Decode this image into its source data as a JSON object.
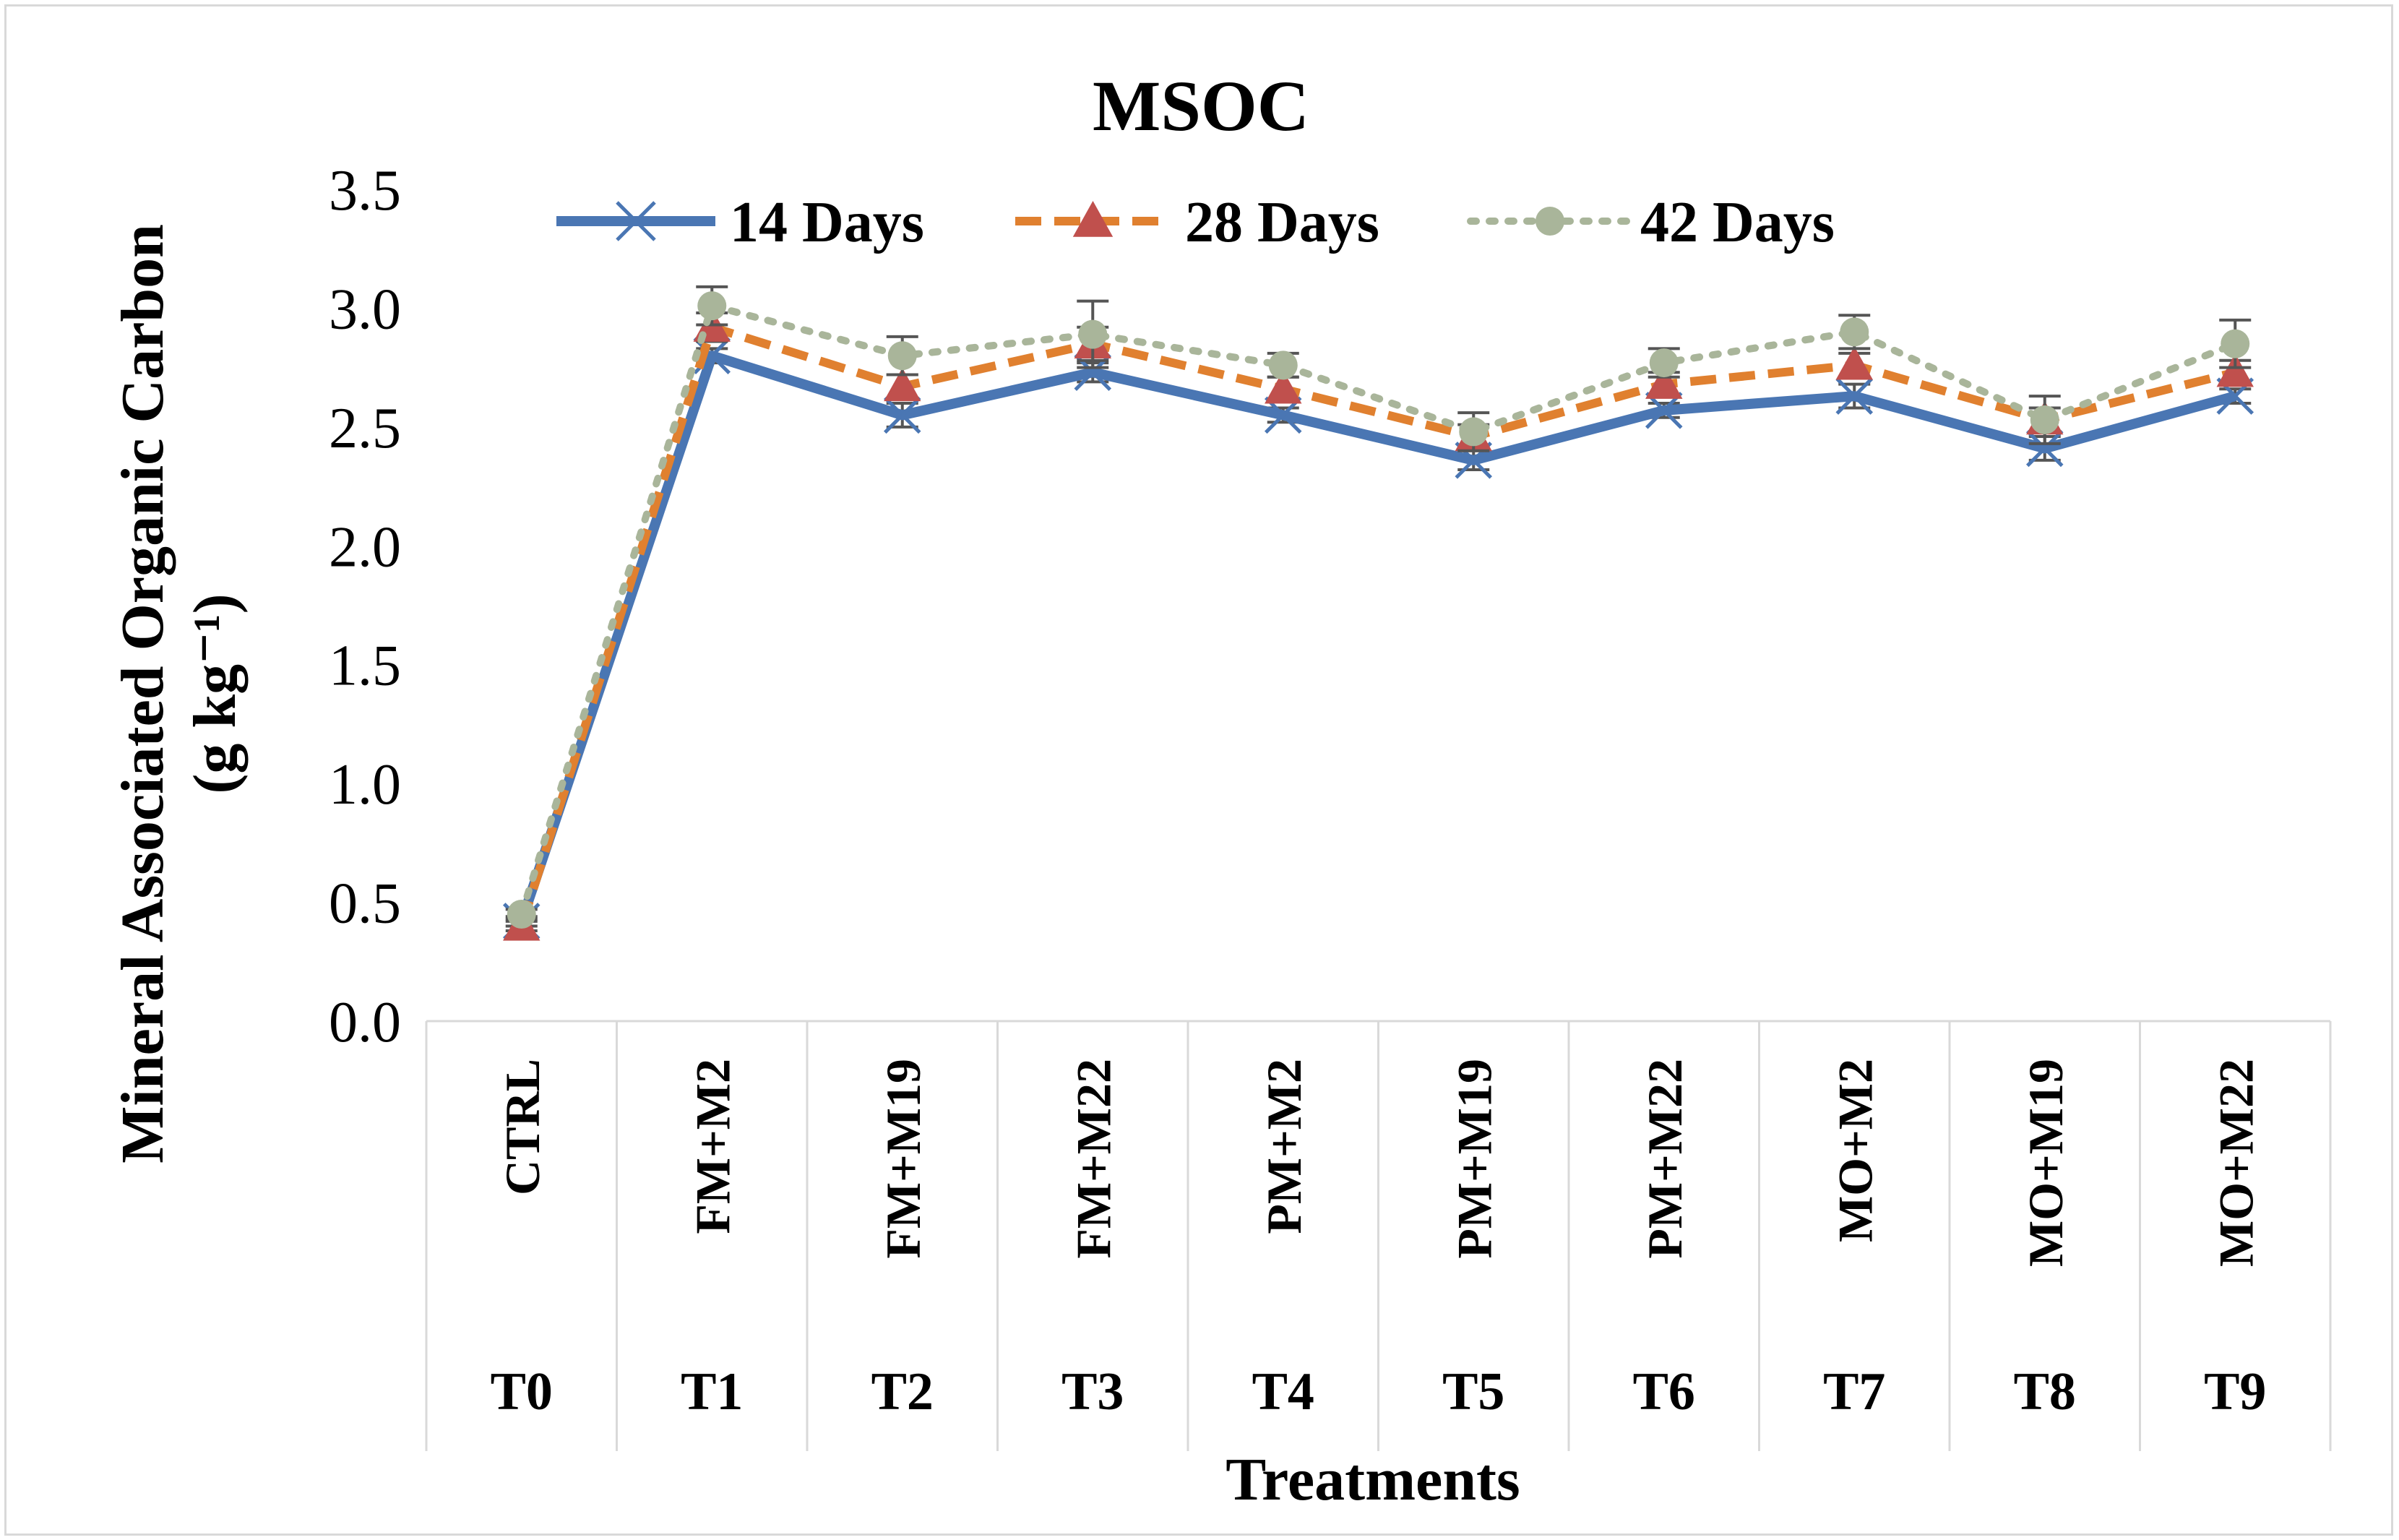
{
  "chart_data": {
    "type": "line",
    "title": "MSOC",
    "xlabel": "Treatments",
    "ylabel": "Mineral Associated Organic  Carbon",
    "ylabel_unit": "(g kg⁻¹)",
    "ylim": [
      0,
      3.5
    ],
    "yticks": [
      "0.0",
      "0.5",
      "1.0",
      "1.5",
      "2.0",
      "2.5",
      "3.0",
      "3.5"
    ],
    "categories": [
      "CTRL",
      "FM+M2",
      "FM+M19",
      "FM+M22",
      "PM+M2",
      "PM+M19",
      "PM+M22",
      "MO+M2",
      "MO+M19",
      "MO+M22"
    ],
    "codes": [
      "T0",
      "T1",
      "T2",
      "T3",
      "T4",
      "T5",
      "T6",
      "T7",
      "T8",
      "T9"
    ],
    "legend_position": "top",
    "series": [
      {
        "name": "14 Days",
        "color": "#4a76b3",
        "style": "solid",
        "marker": "x",
        "values": [
          0.42,
          2.8,
          2.55,
          2.73,
          2.55,
          2.36,
          2.57,
          2.63,
          2.41,
          2.63
        ],
        "errors": [
          0.02,
          0.03,
          0.05,
          0.04,
          0.03,
          0.04,
          0.03,
          0.05,
          0.05,
          0.03
        ]
      },
      {
        "name": "28 Days",
        "color": "#e0802f",
        "style": "dashed",
        "marker": "triangle",
        "values": [
          0.4,
          2.92,
          2.67,
          2.85,
          2.66,
          2.46,
          2.68,
          2.76,
          2.53,
          2.73
        ],
        "errors": [
          0.02,
          0.06,
          0.05,
          0.07,
          0.05,
          0.05,
          0.05,
          0.05,
          0.05,
          0.05
        ]
      },
      {
        "name": "42 Days",
        "color": "#a9b59a",
        "style": "dotted",
        "marker": "circle",
        "values": [
          0.45,
          3.01,
          2.8,
          2.89,
          2.76,
          2.48,
          2.77,
          2.9,
          2.53,
          2.85
        ],
        "errors": [
          0.02,
          0.08,
          0.08,
          0.14,
          0.05,
          0.08,
          0.06,
          0.07,
          0.1,
          0.1
        ]
      }
    ]
  }
}
